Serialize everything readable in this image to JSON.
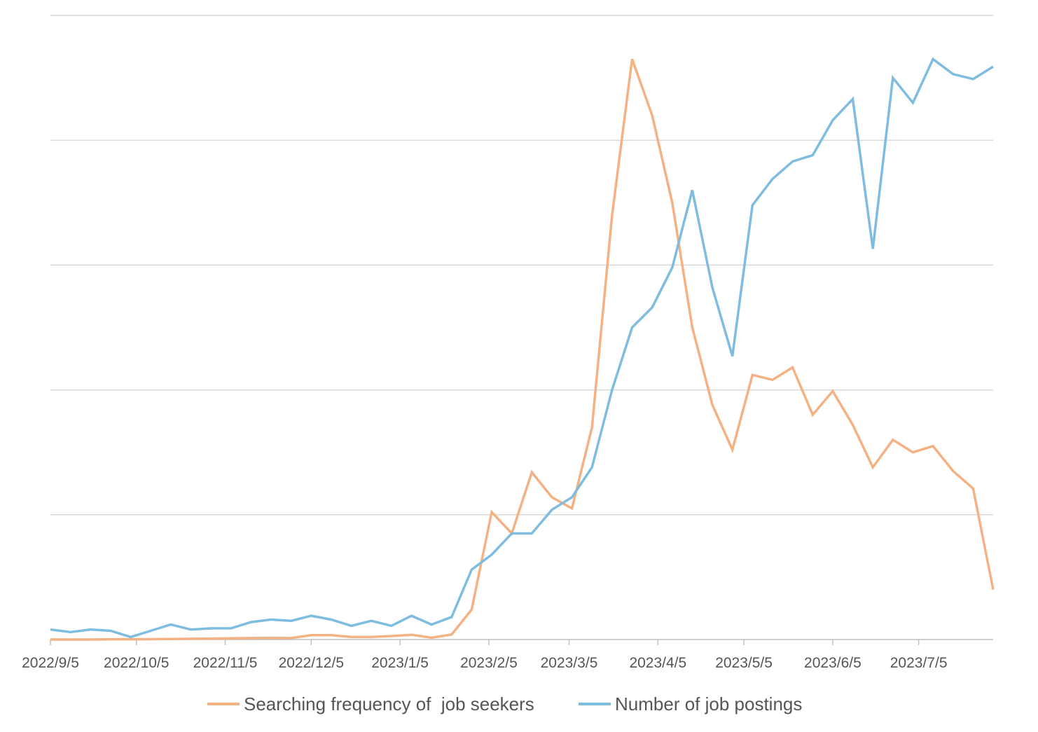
{
  "chart_data": {
    "type": "line",
    "title": "",
    "xlabel": "",
    "ylabel": "",
    "grid": true,
    "gridline_count": 6,
    "y_ticks_labeled": false,
    "legend_position": "bottom-center",
    "x_tick_labels": [
      "2022/9/5",
      "2022/10/5",
      "2022/11/5",
      "2022/12/5",
      "2023/1/5",
      "2023/2/5",
      "2023/3/5",
      "2023/4/5",
      "2023/5/5",
      "2023/6/5",
      "2023/7/5"
    ],
    "x_tick_dates": [
      "2022-09-05",
      "2022-10-05",
      "2022-11-05",
      "2022-12-05",
      "2023-01-05",
      "2023-02-05",
      "2023-03-05",
      "2023-04-05",
      "2023-05-05",
      "2023-06-05",
      "2023-07-05"
    ],
    "x": [
      "2022-09-05",
      "2022-09-12",
      "2022-09-19",
      "2022-09-26",
      "2022-10-03",
      "2022-10-10",
      "2022-10-17",
      "2022-10-24",
      "2022-10-31",
      "2022-11-07",
      "2022-11-14",
      "2022-11-21",
      "2022-11-28",
      "2022-12-05",
      "2022-12-12",
      "2022-12-19",
      "2022-12-26",
      "2023-01-02",
      "2023-01-09",
      "2023-01-16",
      "2023-01-23",
      "2023-01-30",
      "2023-02-06",
      "2023-02-13",
      "2023-02-20",
      "2023-02-27",
      "2023-03-06",
      "2023-03-13",
      "2023-03-20",
      "2023-03-27",
      "2023-04-03",
      "2023-04-10",
      "2023-04-17",
      "2023-04-24",
      "2023-05-01",
      "2023-05-08",
      "2023-05-15",
      "2023-05-22",
      "2023-05-29",
      "2023-06-05",
      "2023-06-12",
      "2023-06-19",
      "2023-06-26",
      "2023-07-03",
      "2023-07-10",
      "2023-07-17",
      "2023-07-24",
      "2023-07-31"
    ],
    "ylim": [
      0,
      5
    ],
    "series": [
      {
        "name": "Searching frequency of  job seekers",
        "color": "#f4b183",
        "values": [
          0.0,
          0.0,
          0.0,
          0.002,
          0.002,
          0.003,
          0.004,
          0.006,
          0.008,
          0.01,
          0.012,
          0.013,
          0.012,
          0.035,
          0.035,
          0.02,
          0.02,
          0.028,
          0.038,
          0.015,
          0.04,
          0.24,
          1.02,
          0.85,
          1.34,
          1.14,
          1.05,
          1.7,
          3.4,
          4.65,
          4.2,
          3.5,
          2.5,
          1.88,
          1.52,
          2.12,
          2.08,
          2.18,
          1.8,
          1.99,
          1.72,
          1.38,
          1.6,
          1.5,
          1.55,
          1.35,
          1.21,
          0.4
        ]
      },
      {
        "name": "Number of job postings",
        "color": "#7ebce0",
        "values": [
          0.08,
          0.06,
          0.08,
          0.07,
          0.02,
          0.07,
          0.12,
          0.08,
          0.09,
          0.09,
          0.14,
          0.16,
          0.15,
          0.19,
          0.16,
          0.11,
          0.15,
          0.11,
          0.19,
          0.12,
          0.18,
          0.56,
          0.68,
          0.85,
          0.85,
          1.04,
          1.14,
          1.38,
          2.0,
          2.5,
          2.66,
          2.98,
          3.6,
          2.82,
          2.27,
          3.48,
          3.69,
          3.83,
          3.88,
          4.16,
          4.33,
          3.13,
          4.5,
          4.3,
          4.65,
          4.53,
          4.49,
          4.59
        ]
      }
    ]
  }
}
